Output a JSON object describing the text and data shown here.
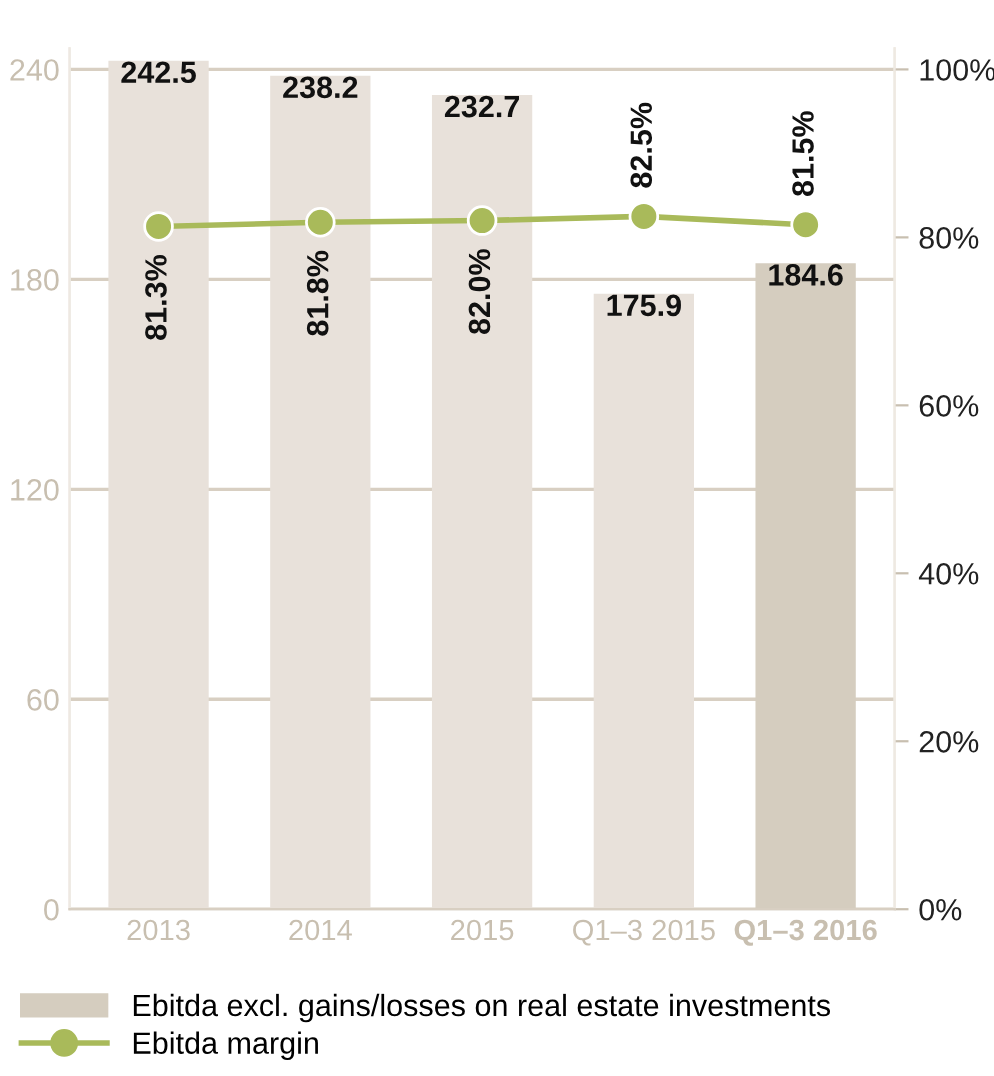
{
  "chart_data": {
    "type": "bar",
    "categories": [
      "2013",
      "2014",
      "2015",
      "Q1–3 2015",
      "Q1–3 2016"
    ],
    "series": [
      {
        "name": "Ebitda excl. gains/losses on real estate investments",
        "colors": [
          "#e8e1da",
          "#e8e1da",
          "#e8e1da",
          "#e8e1da",
          "#d5cdbf"
        ],
        "values": [
          242.5,
          238.2,
          232.7,
          175.9,
          184.6
        ],
        "value_labels": [
          "242.5",
          "238.2",
          "232.7",
          "175.9",
          "184.6"
        ]
      },
      {
        "name": "Ebitda margin",
        "type": "line",
        "axis": "y2",
        "color": "#a9ba5a",
        "marker": "circle",
        "values": [
          81.3,
          81.8,
          82.0,
          82.5,
          81.5
        ],
        "value_labels": [
          "81.3%",
          "81.8%",
          "82.0%",
          "82.5%",
          "81.5%"
        ]
      }
    ],
    "ylim": [
      0,
      246
    ],
    "yticks": [
      0,
      60,
      120,
      180,
      240
    ],
    "y2lim": [
      0,
      102.5
    ],
    "y2ticks": [
      {
        "value": 0,
        "label": "0%"
      },
      {
        "value": 20,
        "label": "20%"
      },
      {
        "value": 40,
        "label": "40%"
      },
      {
        "value": 60,
        "label": "60%"
      },
      {
        "value": 80,
        "label": "80%"
      },
      {
        "value": 100,
        "label": "100%"
      }
    ],
    "grid": "y",
    "legend": "bottom"
  }
}
